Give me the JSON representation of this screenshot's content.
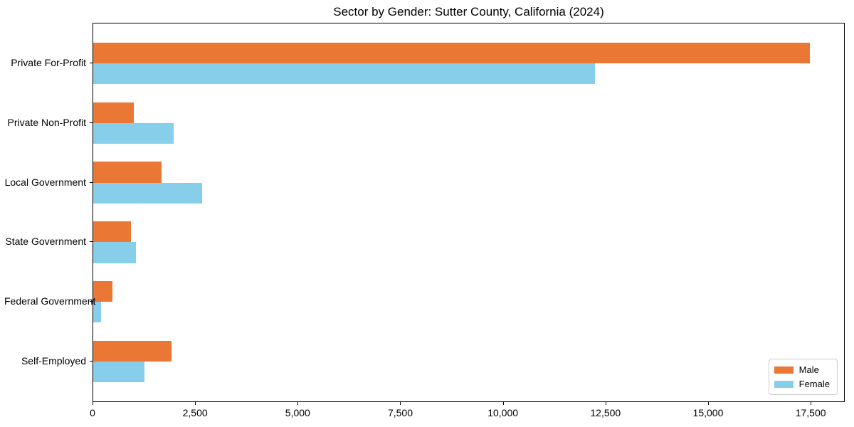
{
  "title": "Sector by Gender: Sutter County, California (2024)",
  "chart_data": {
    "type": "bar",
    "orientation": "horizontal",
    "title": "Sector by Gender: Sutter County, California (2024)",
    "categories": [
      "Private For-Profit",
      "Private Non-Profit",
      "Local Government",
      "State Government",
      "Federal Government",
      "Self-Employed"
    ],
    "series": [
      {
        "name": "Male",
        "color": "#EB7734",
        "values": [
          17460,
          990,
          1670,
          920,
          470,
          1910
        ]
      },
      {
        "name": "Female",
        "color": "#87CEEB",
        "values": [
          12220,
          1960,
          2650,
          1040,
          190,
          1250
        ]
      }
    ],
    "xlabel": "",
    "ylabel": "",
    "xlim": [
      0,
      18330
    ],
    "xticks": [
      0,
      2500,
      5000,
      7500,
      10000,
      12500,
      15000,
      17500
    ],
    "xtick_labels": [
      "0",
      "2,500",
      "5,000",
      "7,500",
      "10,000",
      "12,500",
      "15,000",
      "17,500"
    ],
    "legend_position": "lower right",
    "grid": false
  }
}
